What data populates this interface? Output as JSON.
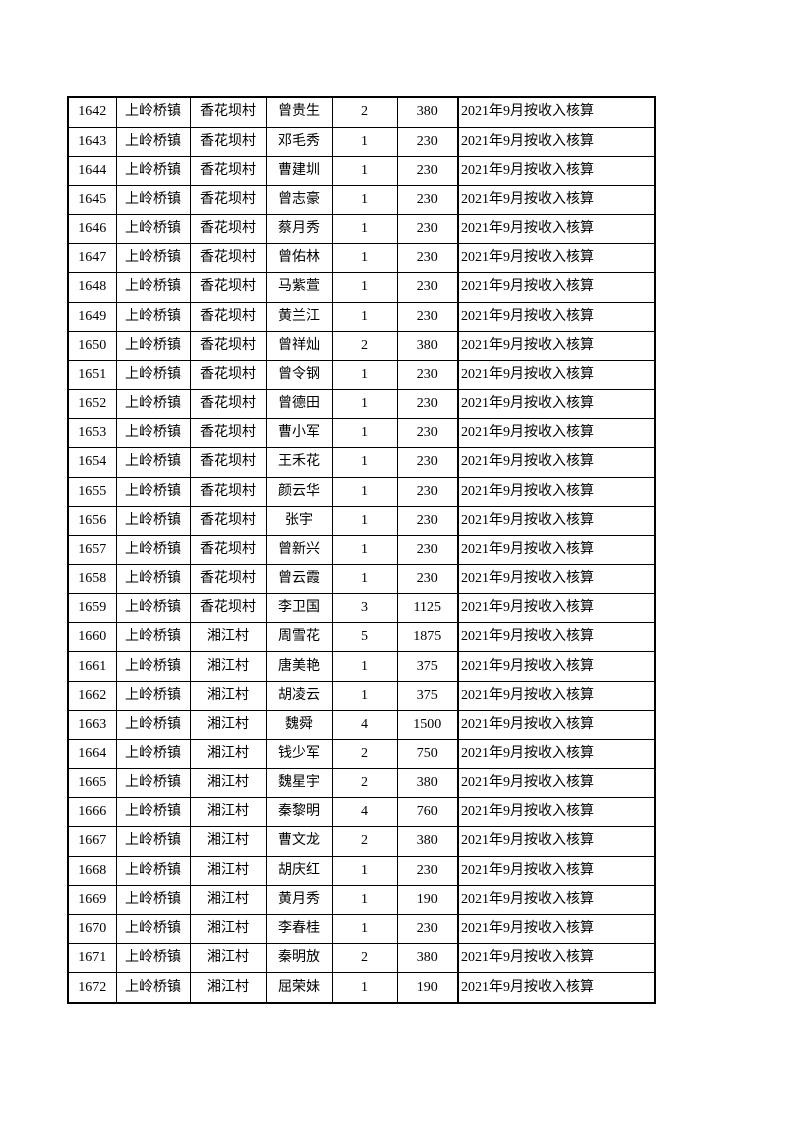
{
  "page": {
    "background_color": "#ffffff",
    "grid_color": "#000000",
    "text_color": "#000000"
  },
  "table": {
    "rows": [
      {
        "serial": "1642",
        "town": "上岭桥镇",
        "village": "香花坝村",
        "name": "曾贵生",
        "count": "2",
        "amount": "380",
        "note": "2021年9月按收入核算"
      },
      {
        "serial": "1643",
        "town": "上岭桥镇",
        "village": "香花坝村",
        "name": "邓毛秀",
        "count": "1",
        "amount": "230",
        "note": "2021年9月按收入核算"
      },
      {
        "serial": "1644",
        "town": "上岭桥镇",
        "village": "香花坝村",
        "name": "曹建圳",
        "count": "1",
        "amount": "230",
        "note": "2021年9月按收入核算"
      },
      {
        "serial": "1645",
        "town": "上岭桥镇",
        "village": "香花坝村",
        "name": "曾志豪",
        "count": "1",
        "amount": "230",
        "note": "2021年9月按收入核算"
      },
      {
        "serial": "1646",
        "town": "上岭桥镇",
        "village": "香花坝村",
        "name": "蔡月秀",
        "count": "1",
        "amount": "230",
        "note": "2021年9月按收入核算"
      },
      {
        "serial": "1647",
        "town": "上岭桥镇",
        "village": "香花坝村",
        "name": "曾佑林",
        "count": "1",
        "amount": "230",
        "note": "2021年9月按收入核算"
      },
      {
        "serial": "1648",
        "town": "上岭桥镇",
        "village": "香花坝村",
        "name": "马紫萱",
        "count": "1",
        "amount": "230",
        "note": "2021年9月按收入核算"
      },
      {
        "serial": "1649",
        "town": "上岭桥镇",
        "village": "香花坝村",
        "name": "黄兰江",
        "count": "1",
        "amount": "230",
        "note": "2021年9月按收入核算"
      },
      {
        "serial": "1650",
        "town": "上岭桥镇",
        "village": "香花坝村",
        "name": "曾祥灿",
        "count": "2",
        "amount": "380",
        "note": "2021年9月按收入核算"
      },
      {
        "serial": "1651",
        "town": "上岭桥镇",
        "village": "香花坝村",
        "name": "曾令钢",
        "count": "1",
        "amount": "230",
        "note": "2021年9月按收入核算"
      },
      {
        "serial": "1652",
        "town": "上岭桥镇",
        "village": "香花坝村",
        "name": "曾德田",
        "count": "1",
        "amount": "230",
        "note": "2021年9月按收入核算"
      },
      {
        "serial": "1653",
        "town": "上岭桥镇",
        "village": "香花坝村",
        "name": "曹小军",
        "count": "1",
        "amount": "230",
        "note": "2021年9月按收入核算"
      },
      {
        "serial": "1654",
        "town": "上岭桥镇",
        "village": "香花坝村",
        "name": "王禾花",
        "count": "1",
        "amount": "230",
        "note": "2021年9月按收入核算"
      },
      {
        "serial": "1655",
        "town": "上岭桥镇",
        "village": "香花坝村",
        "name": "颜云华",
        "count": "1",
        "amount": "230",
        "note": "2021年9月按收入核算"
      },
      {
        "serial": "1656",
        "town": "上岭桥镇",
        "village": "香花坝村",
        "name": "张宇",
        "count": "1",
        "amount": "230",
        "note": "2021年9月按收入核算"
      },
      {
        "serial": "1657",
        "town": "上岭桥镇",
        "village": "香花坝村",
        "name": "曾新兴",
        "count": "1",
        "amount": "230",
        "note": "2021年9月按收入核算"
      },
      {
        "serial": "1658",
        "town": "上岭桥镇",
        "village": "香花坝村",
        "name": "曾云霞",
        "count": "1",
        "amount": "230",
        "note": "2021年9月按收入核算"
      },
      {
        "serial": "1659",
        "town": "上岭桥镇",
        "village": "香花坝村",
        "name": "李卫国",
        "count": "3",
        "amount": "1125",
        "note": "2021年9月按收入核算"
      },
      {
        "serial": "1660",
        "town": "上岭桥镇",
        "village": "湘江村",
        "name": "周雪花",
        "count": "5",
        "amount": "1875",
        "note": "2021年9月按收入核算"
      },
      {
        "serial": "1661",
        "town": "上岭桥镇",
        "village": "湘江村",
        "name": "唐美艳",
        "count": "1",
        "amount": "375",
        "note": "2021年9月按收入核算"
      },
      {
        "serial": "1662",
        "town": "上岭桥镇",
        "village": "湘江村",
        "name": "胡凌云",
        "count": "1",
        "amount": "375",
        "note": "2021年9月按收入核算"
      },
      {
        "serial": "1663",
        "town": "上岭桥镇",
        "village": "湘江村",
        "name": "魏舜",
        "count": "4",
        "amount": "1500",
        "note": "2021年9月按收入核算"
      },
      {
        "serial": "1664",
        "town": "上岭桥镇",
        "village": "湘江村",
        "name": "钱少军",
        "count": "2",
        "amount": "750",
        "note": "2021年9月按收入核算"
      },
      {
        "serial": "1665",
        "town": "上岭桥镇",
        "village": "湘江村",
        "name": "魏星宇",
        "count": "2",
        "amount": "380",
        "note": "2021年9月按收入核算"
      },
      {
        "serial": "1666",
        "town": "上岭桥镇",
        "village": "湘江村",
        "name": "秦黎明",
        "count": "4",
        "amount": "760",
        "note": "2021年9月按收入核算"
      },
      {
        "serial": "1667",
        "town": "上岭桥镇",
        "village": "湘江村",
        "name": "曹文龙",
        "count": "2",
        "amount": "380",
        "note": "2021年9月按收入核算"
      },
      {
        "serial": "1668",
        "town": "上岭桥镇",
        "village": "湘江村",
        "name": "胡庆红",
        "count": "1",
        "amount": "230",
        "note": "2021年9月按收入核算"
      },
      {
        "serial": "1669",
        "town": "上岭桥镇",
        "village": "湘江村",
        "name": "黄月秀",
        "count": "1",
        "amount": "190",
        "note": "2021年9月按收入核算"
      },
      {
        "serial": "1670",
        "town": "上岭桥镇",
        "village": "湘江村",
        "name": "李春桂",
        "count": "1",
        "amount": "230",
        "note": "2021年9月按收入核算"
      },
      {
        "serial": "1671",
        "town": "上岭桥镇",
        "village": "湘江村",
        "name": "秦明放",
        "count": "2",
        "amount": "380",
        "note": "2021年9月按收入核算"
      },
      {
        "serial": "1672",
        "town": "上岭桥镇",
        "village": "湘江村",
        "name": "屈荣妹",
        "count": "1",
        "amount": "190",
        "note": "2021年9月按收入核算"
      }
    ]
  }
}
